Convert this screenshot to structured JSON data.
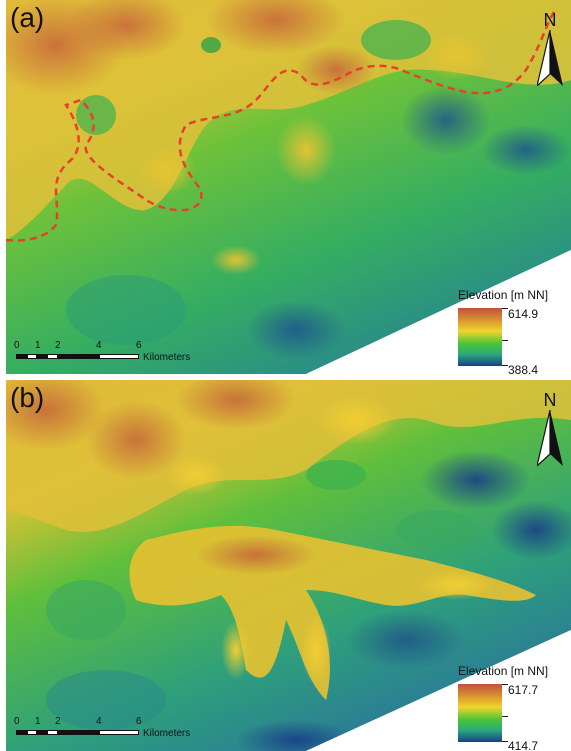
{
  "panels": [
    {
      "label": "(a)",
      "north": "N",
      "legend": {
        "title": "Elevation [m NN]",
        "max": "614.9",
        "min": "388.4"
      },
      "scale": {
        "ticks": [
          "0",
          "1",
          "2",
          "4",
          "6"
        ],
        "unit": "Kilometers"
      },
      "boundary_line_color": "#e8402a"
    },
    {
      "label": "(b)",
      "north": "N",
      "legend": {
        "title": "Elevation [m NN]",
        "max": "617.7",
        "min": "414.7"
      },
      "scale": {
        "ticks": [
          "0",
          "1",
          "2",
          "4",
          "6"
        ],
        "unit": "Kilometers"
      }
    }
  ],
  "colors": {
    "high": "#c1503f",
    "mid_high": "#d8a83a",
    "mid": "#f0d52c",
    "mid_low": "#48c43a",
    "low": "#2aa87f",
    "lowest": "#1b3f86"
  }
}
